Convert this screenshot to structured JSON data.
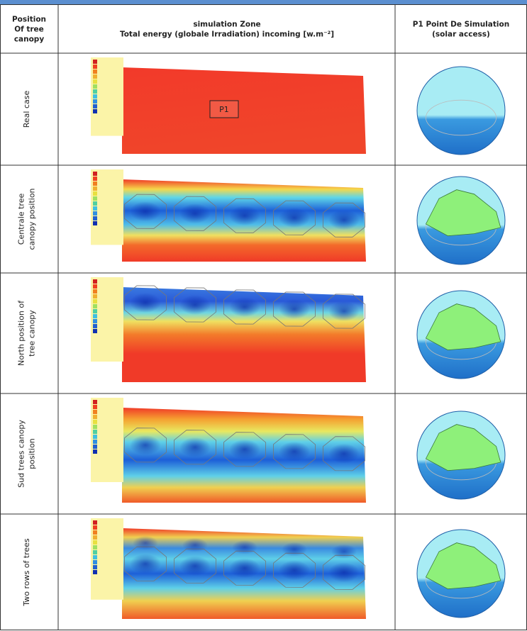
{
  "header": {
    "columns": [
      {
        "lines": [
          "Position",
          "Of tree",
          "canopy"
        ]
      },
      {
        "lines": [
          "simulation Zone",
          "Total energy (globale Irradiation) incoming [w.m⁻²]"
        ]
      },
      {
        "lines": [
          "P1 Point De Simulation",
          "(solar access)"
        ]
      }
    ]
  },
  "rows": [
    {
      "lines": [
        "Real case"
      ],
      "annotation": "P1"
    },
    {
      "lines": [
        "Centrale tree",
        "canopy position"
      ]
    },
    {
      "lines": [
        "North position of",
        "tree canopy"
      ]
    },
    {
      "lines": [
        "Sud trees canopy",
        "position"
      ]
    },
    {
      "lines": [
        "Two rows of trees"
      ]
    }
  ]
}
